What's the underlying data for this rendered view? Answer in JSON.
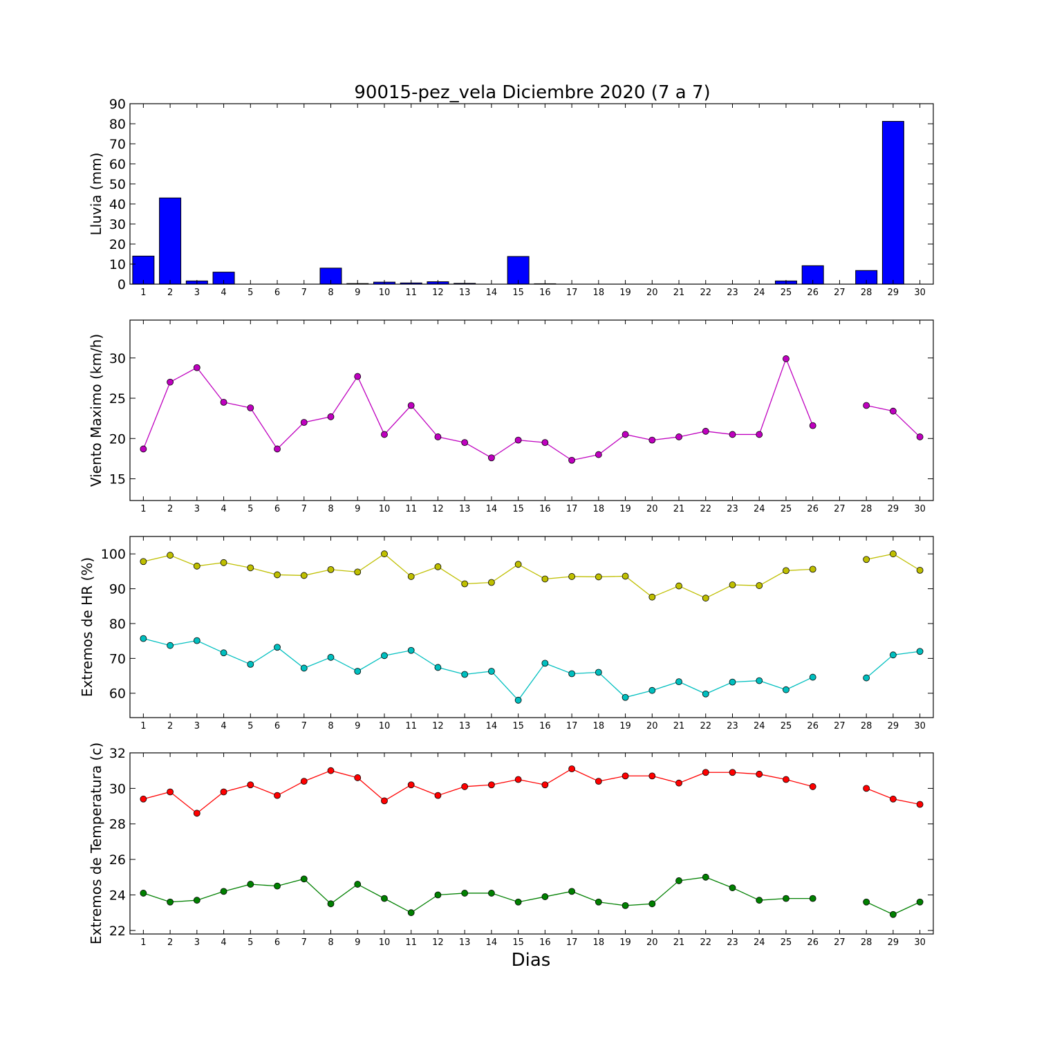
{
  "title": "90015-pez_vela Diciembre 2020  (7 a 7)",
  "xlabel": "Dias",
  "chart_data": [
    {
      "type": "bar",
      "ylabel": "Lluvia (mm)",
      "ylim": [
        0,
        90
      ],
      "yticks": [
        0,
        10,
        20,
        30,
        40,
        50,
        60,
        70,
        80,
        90
      ],
      "categories": [
        1,
        2,
        3,
        4,
        5,
        6,
        7,
        8,
        9,
        10,
        11,
        12,
        13,
        14,
        15,
        16,
        17,
        18,
        19,
        20,
        21,
        22,
        23,
        24,
        25,
        26,
        27,
        28,
        29,
        30
      ],
      "values": [
        14.0,
        43.0,
        1.6,
        6.0,
        0,
        0,
        0,
        8.0,
        0.3,
        1.0,
        0.6,
        1.2,
        0.4,
        0,
        13.8,
        0.2,
        0,
        0,
        0,
        0,
        0,
        0,
        0,
        0,
        1.6,
        9.2,
        null,
        6.8,
        81.2,
        0
      ],
      "color": "#0000ff"
    },
    {
      "type": "line",
      "ylabel": "Viento Maximo (km/h)",
      "ylim": [
        12.3,
        34.7
      ],
      "yticks": [
        15,
        20,
        25,
        30
      ],
      "x": [
        1,
        2,
        3,
        4,
        5,
        6,
        7,
        8,
        9,
        10,
        11,
        12,
        13,
        14,
        15,
        16,
        17,
        18,
        19,
        20,
        21,
        22,
        23,
        24,
        25,
        26,
        27,
        28,
        29,
        30
      ],
      "series": [
        {
          "color": "#bf00bf",
          "values": [
            18.7,
            27.0,
            28.8,
            24.5,
            23.8,
            18.7,
            22.0,
            22.7,
            27.7,
            20.5,
            24.1,
            20.2,
            19.5,
            17.6,
            19.8,
            19.5,
            17.3,
            18.0,
            20.5,
            19.8,
            20.2,
            20.9,
            20.5,
            20.5,
            29.9,
            21.6,
            null,
            24.1,
            23.4,
            20.2
          ]
        }
      ]
    },
    {
      "type": "line",
      "ylabel": "Extremos de HR (%)",
      "ylim": [
        53,
        105
      ],
      "yticks": [
        60,
        70,
        80,
        90,
        100
      ],
      "x": [
        1,
        2,
        3,
        4,
        5,
        6,
        7,
        8,
        9,
        10,
        11,
        12,
        13,
        14,
        15,
        16,
        17,
        18,
        19,
        20,
        21,
        22,
        23,
        24,
        25,
        26,
        27,
        28,
        29,
        30
      ],
      "series": [
        {
          "color": "#bfbf00",
          "values": [
            97.8,
            99.6,
            96.5,
            97.5,
            96.0,
            94.0,
            93.8,
            95.5,
            94.8,
            100.0,
            93.5,
            96.3,
            91.4,
            91.8,
            97.0,
            92.8,
            93.5,
            93.4,
            93.6,
            87.6,
            90.8,
            87.3,
            91.1,
            90.9,
            95.2,
            95.6,
            null,
            98.4,
            100.0,
            95.3
          ]
        },
        {
          "color": "#00bfbf",
          "values": [
            75.7,
            73.7,
            75.1,
            71.6,
            68.3,
            73.2,
            67.2,
            70.3,
            66.3,
            70.8,
            72.3,
            67.4,
            65.4,
            66.3,
            58.0,
            68.6,
            65.6,
            66.0,
            58.8,
            60.8,
            63.3,
            59.8,
            63.2,
            63.6,
            61.0,
            64.6,
            null,
            64.4,
            71.0,
            72.0
          ]
        }
      ]
    },
    {
      "type": "line",
      "ylabel": "Extremos de Temperatura (c)",
      "ylim": [
        21.8,
        32.0
      ],
      "yticks": [
        22,
        24,
        26,
        28,
        30,
        32
      ],
      "x": [
        1,
        2,
        3,
        4,
        5,
        6,
        7,
        8,
        9,
        10,
        11,
        12,
        13,
        14,
        15,
        16,
        17,
        18,
        19,
        20,
        21,
        22,
        23,
        24,
        25,
        26,
        27,
        28,
        29,
        30
      ],
      "series": [
        {
          "color": "#ff0000",
          "values": [
            29.4,
            29.8,
            28.6,
            29.8,
            30.2,
            29.6,
            30.4,
            31.0,
            30.6,
            29.3,
            30.2,
            29.6,
            30.1,
            30.2,
            30.5,
            30.2,
            31.1,
            30.4,
            30.7,
            30.7,
            30.3,
            30.9,
            30.9,
            30.8,
            30.5,
            30.1,
            null,
            30.0,
            29.4,
            29.1
          ]
        },
        {
          "color": "#008000",
          "values": [
            24.1,
            23.6,
            23.7,
            24.2,
            24.6,
            24.5,
            24.9,
            23.5,
            24.6,
            23.8,
            23.0,
            24.0,
            24.1,
            24.1,
            23.6,
            23.9,
            24.2,
            23.6,
            23.4,
            23.5,
            24.8,
            25.0,
            24.4,
            23.7,
            23.8,
            23.8,
            null,
            23.6,
            22.9,
            23.6
          ]
        }
      ]
    }
  ]
}
